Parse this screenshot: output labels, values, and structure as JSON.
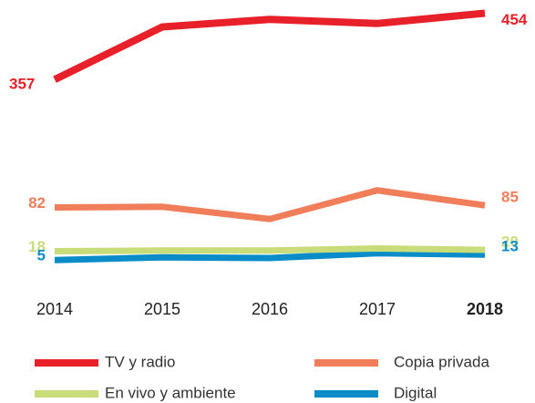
{
  "chart_data": {
    "type": "line",
    "categories": [
      "2014",
      "2015",
      "2016",
      "2017",
      "2018"
    ],
    "highlight_category": "2018",
    "series": [
      {
        "name": "TV y radio",
        "color": "#e8202a",
        "values": [
          357,
          434,
          445,
          439,
          454
        ]
      },
      {
        "name": "Copia privada",
        "color": "#f07e5a",
        "values": [
          82,
          83,
          65,
          107,
          85
        ]
      },
      {
        "name": "En vivo y ambiente",
        "color": "#c8dc7a",
        "values": [
          18,
          19,
          19,
          22,
          20
        ]
      },
      {
        "name": "Digital",
        "color": "#0a8cc8",
        "values": [
          5,
          9,
          8,
          15,
          13
        ]
      }
    ]
  }
}
